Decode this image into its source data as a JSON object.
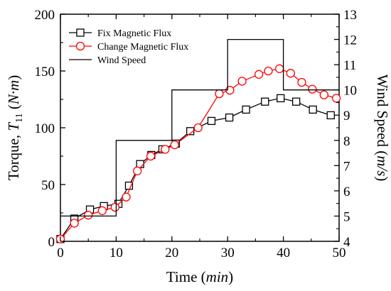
{
  "chart_data": {
    "type": "line",
    "xlabel": "Time (min)",
    "ylabel_left": "Torque, T11 (N·m)",
    "ylabel_right": "Wind Speed (m/s)",
    "xlim": [
      0,
      50
    ],
    "ylim_left": [
      0,
      200
    ],
    "ylim_right": [
      4,
      13
    ],
    "x_ticks": [
      "0",
      "10",
      "20",
      "30",
      "40",
      "50"
    ],
    "y_ticks_left": [
      "0",
      "50",
      "100",
      "150",
      "200"
    ],
    "y_ticks_right": [
      "4",
      "5",
      "6",
      "7",
      "8",
      "9",
      "10",
      "11",
      "12",
      "13"
    ],
    "legend_position": "top-left",
    "grid": false,
    "series": [
      {
        "name": "Fix Magnetic Flux",
        "axis": "left",
        "color": "#000000",
        "marker": "square",
        "x": [
          0,
          2.5,
          5.3,
          7.8,
          10.4,
          12.3,
          14.3,
          16.3,
          18.3,
          20.7,
          23.3,
          27.1,
          30.3,
          33.3,
          36.7,
          39.5,
          42.3,
          45.3,
          48.5
        ],
        "y": [
          2,
          20,
          28,
          31,
          33,
          49,
          68,
          76,
          81,
          86,
          97,
          106,
          109,
          116,
          123,
          126,
          123,
          116,
          111
        ]
      },
      {
        "name": "Change Magnetic Flux",
        "axis": "left",
        "color": "#ff0000",
        "marker": "circle",
        "x": [
          0,
          2.5,
          5,
          7.5,
          9.8,
          11.8,
          13.8,
          16.2,
          18.8,
          20.5,
          24.7,
          28.5,
          30.4,
          32.6,
          35.6,
          37.3,
          39.3,
          41.3,
          43.3,
          45.2,
          47.3,
          49.5
        ],
        "y": [
          2,
          16,
          23,
          27,
          30,
          39,
          62,
          75,
          81,
          85,
          100,
          130,
          133,
          141,
          147,
          150,
          152,
          148,
          140,
          134,
          129,
          126
        ]
      },
      {
        "name": "Wind Speed",
        "axis": "right",
        "color": "#000000",
        "marker": "none",
        "step": true,
        "x": [
          0,
          10,
          10,
          20,
          20,
          30,
          30,
          40,
          40,
          50
        ],
        "y": [
          5,
          5,
          8,
          8,
          10,
          10,
          12,
          12,
          10,
          10
        ]
      }
    ]
  }
}
